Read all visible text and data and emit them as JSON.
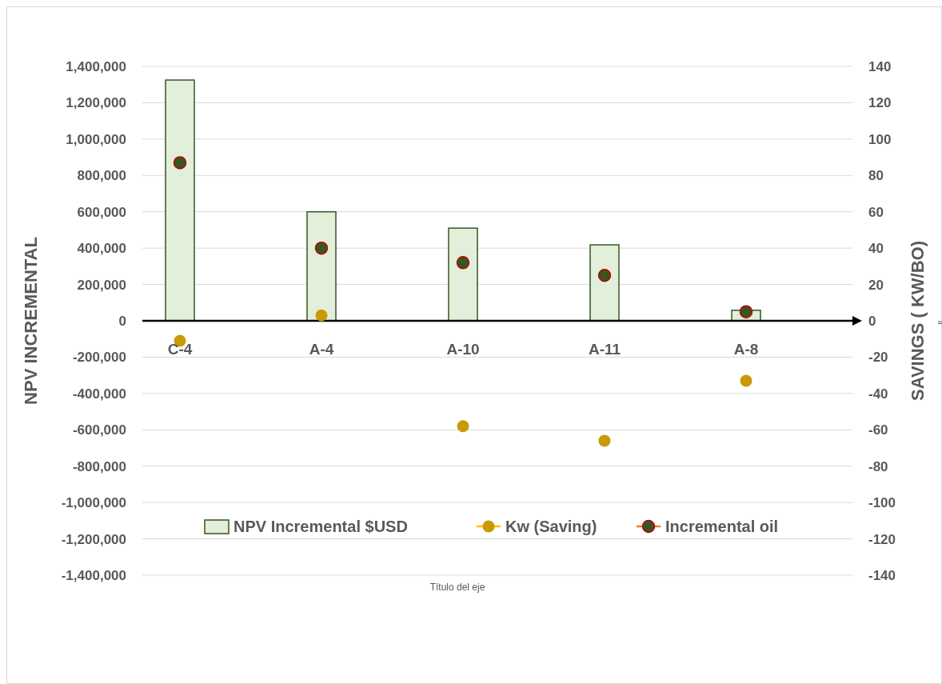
{
  "chart_data": {
    "type": "bar",
    "xlabel": "Título del eje",
    "ylabel": "NPV INCREMENTAL",
    "y2label": "SAVINGS ( KW/BO)",
    "categories": [
      "C-4",
      "A-4",
      "A-10",
      "A-11",
      "A-8"
    ],
    "series": [
      {
        "name": "NPV Incremental $USD",
        "color": "#e2efda",
        "values": [
          1325000,
          600000,
          510000,
          418000,
          58000
        ]
      },
      {
        "name": "Kw (Saving)",
        "type": "scatter",
        "axis": "y2",
        "color": "#c99a06",
        "values": [
          -11,
          3,
          -58,
          -66,
          -33
        ]
      },
      {
        "name": "Incremental oil",
        "type": "scatter",
        "axis": "y2",
        "color": "#375623",
        "values": [
          87,
          40,
          32,
          25,
          5
        ]
      }
    ],
    "ylim": [
      -1400000,
      1400000
    ],
    "yticks": [
      {
        "value": -1400000,
        "label": "-1,400,000"
      },
      {
        "value": -1200000,
        "label": "-1,200,000"
      },
      {
        "value": -1000000,
        "label": "-1,000,000"
      },
      {
        "value": -800000,
        "label": "-800,000"
      },
      {
        "value": -600000,
        "label": "-600,000"
      },
      {
        "value": -400000,
        "label": "-400,000"
      },
      {
        "value": -200000,
        "label": "-200,000"
      },
      0,
      {
        "value": 200000,
        "label": "200,000"
      },
      {
        "value": 400000,
        "label": "400,000"
      },
      {
        "value": 600000,
        "label": "600,000"
      },
      {
        "value": 800000,
        "label": "800,000"
      },
      {
        "value": 1000000,
        "label": "1,000,000"
      },
      {
        "value": 1200000,
        "label": "1,200,000"
      },
      {
        "value": 1400000,
        "label": "1,400,000"
      }
    ],
    "y2lim": [
      -140,
      140
    ],
    "y2ticks": [
      -140,
      -120,
      -100,
      -80,
      -60,
      -40,
      -20,
      0,
      20,
      40,
      60,
      80,
      100,
      120,
      140
    ],
    "grid": "y",
    "legend": "bottom",
    "marker": "circle",
    "annotations": [
      "e"
    ]
  }
}
